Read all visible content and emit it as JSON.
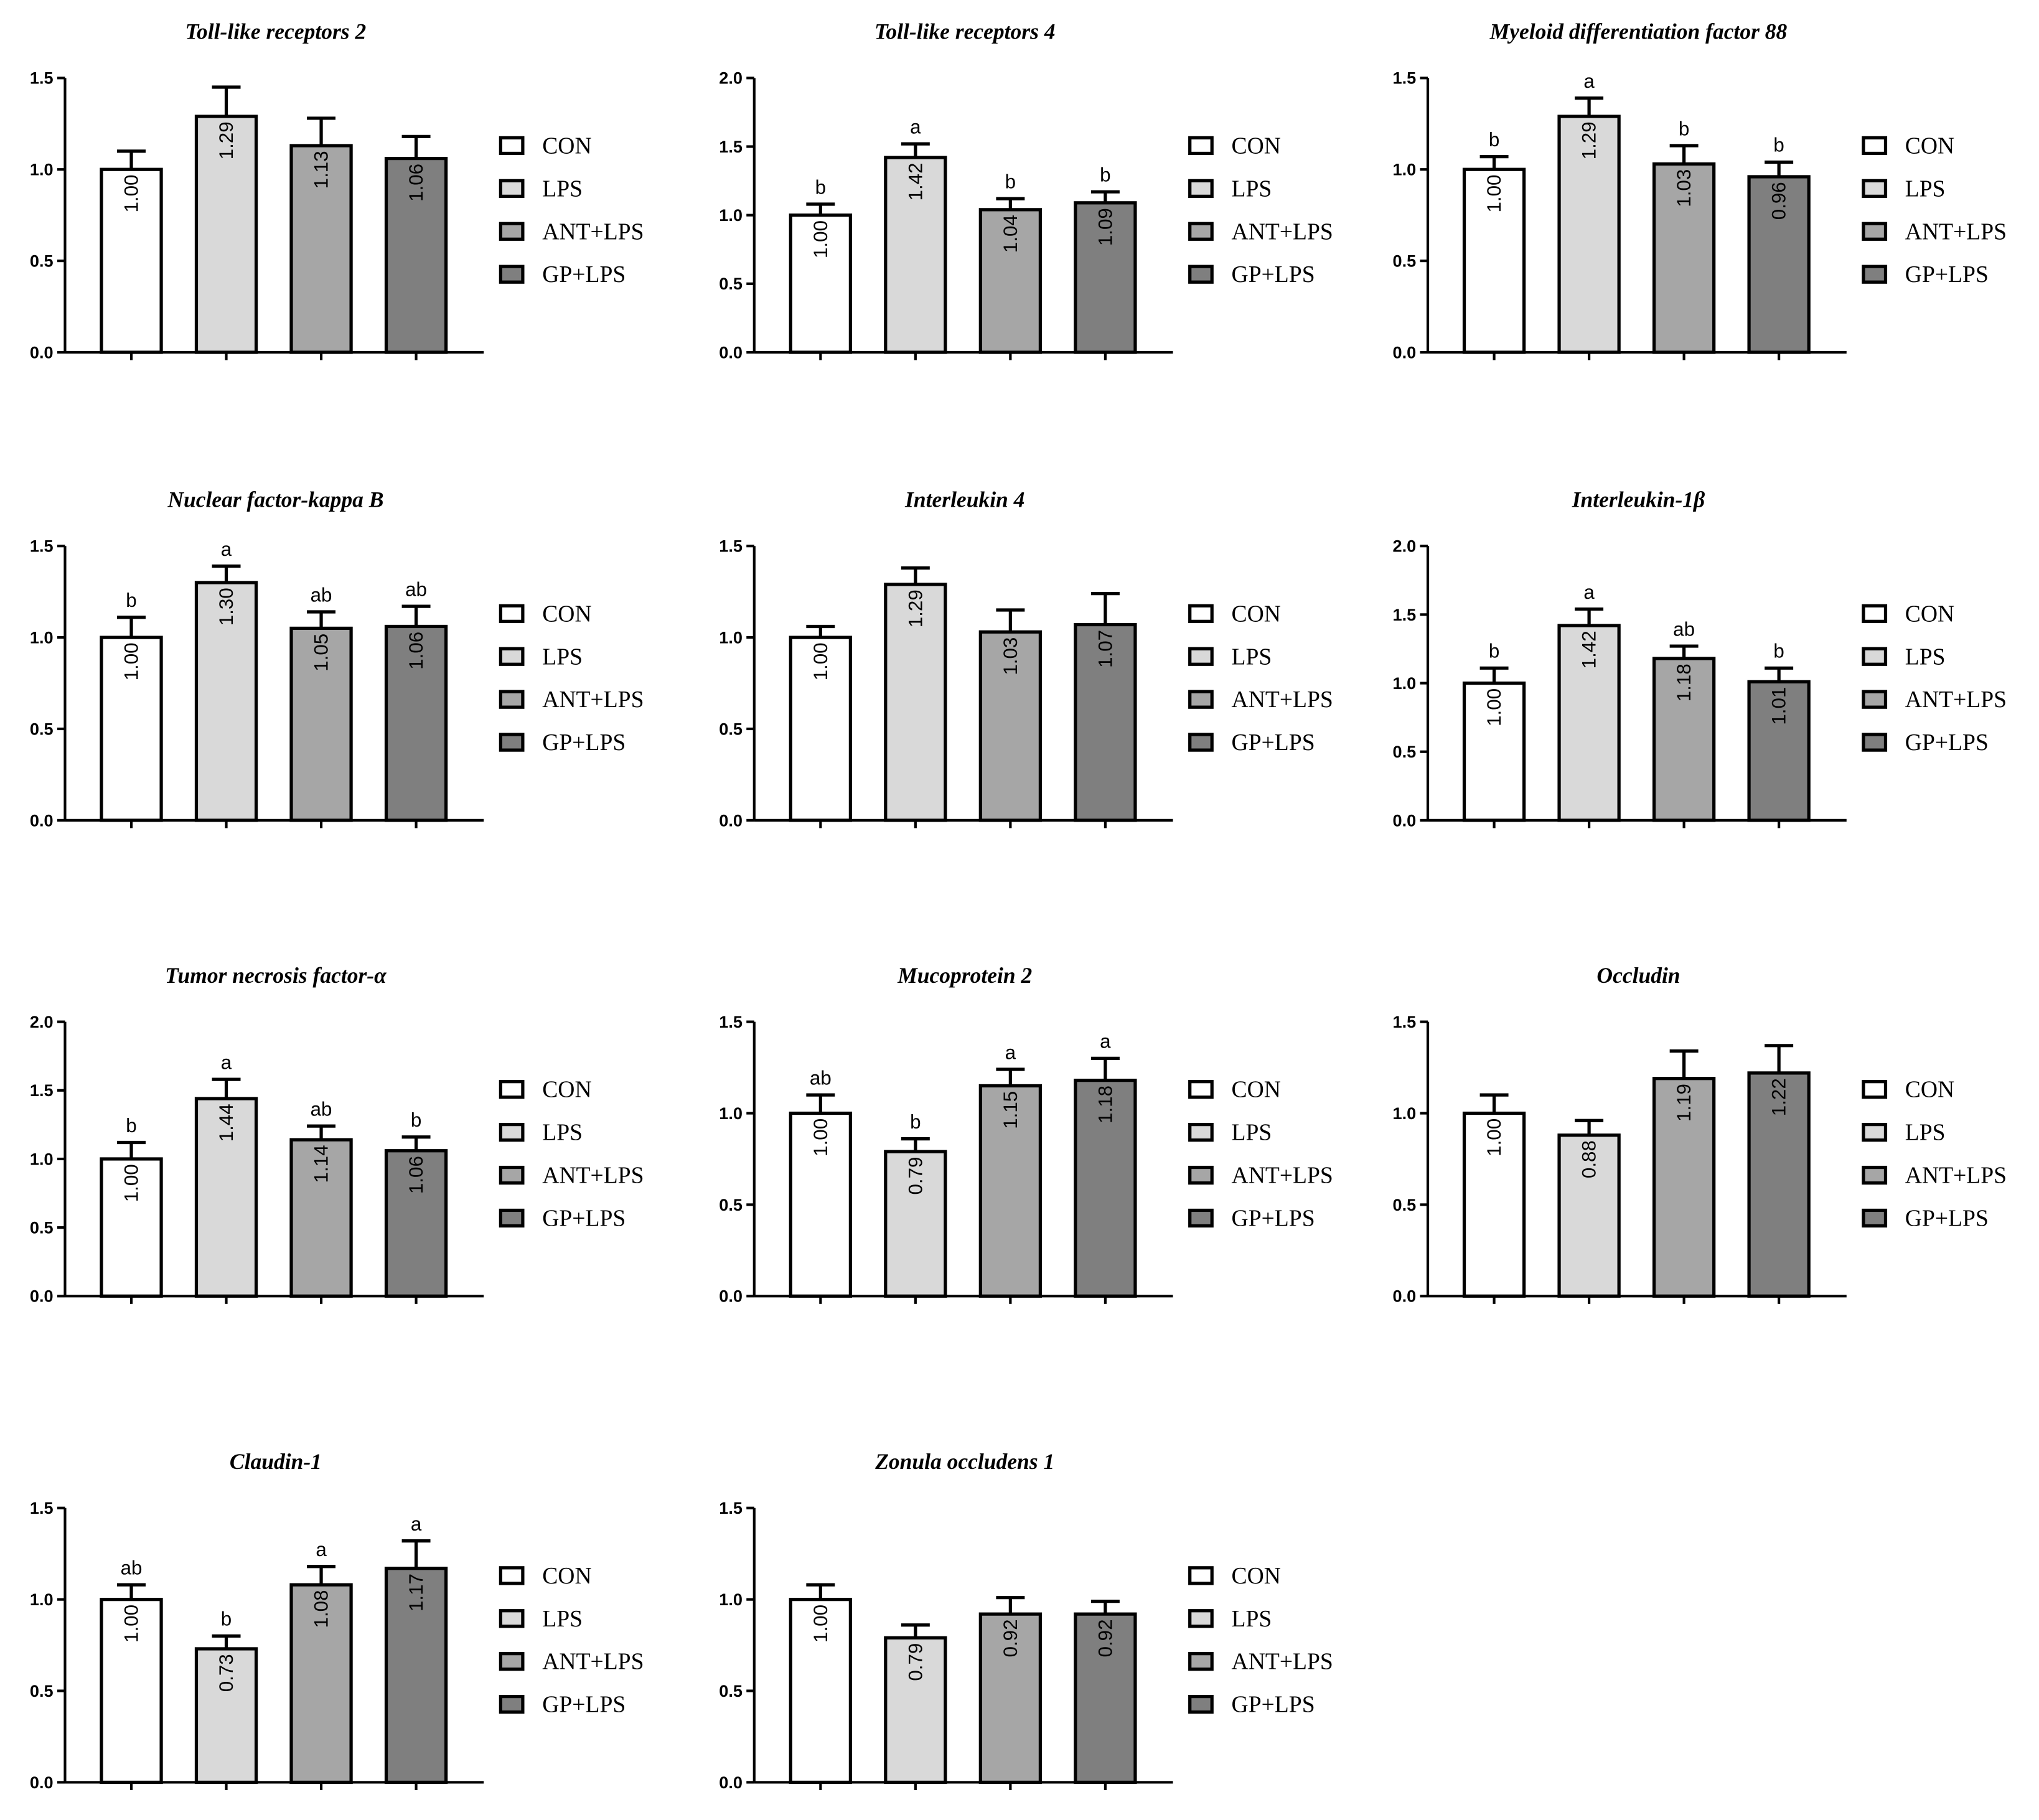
{
  "chart_data": [
    {
      "type": "bar",
      "title": "Toll-like receptors 2",
      "categories": [
        "CON",
        "LPS",
        "ANT+LPS",
        "GP+LPS"
      ],
      "colors": [
        "#ffffff",
        "#d9d9d9",
        "#a6a6a6",
        "#7f7f7f"
      ],
      "values": [
        1.0,
        1.29,
        1.13,
        1.06
      ],
      "value_labels": [
        "1.00",
        "1.29",
        "1.13",
        "1.06"
      ],
      "errors": [
        0.1,
        0.16,
        0.15,
        0.12
      ],
      "ylim": [
        0,
        1.5
      ],
      "yticks": [
        {
          "value": 0,
          "label": "0.0"
        },
        0.5,
        {
          "value": 1,
          "label": "1.0"
        },
        1.5
      ]
    },
    {
      "type": "bar",
      "title": "Toll-like receptors 4",
      "categories": [
        "CON",
        "LPS",
        "ANT+LPS",
        "GP+LPS"
      ],
      "colors": [
        "#ffffff",
        "#d9d9d9",
        "#a6a6a6",
        "#7f7f7f"
      ],
      "values": [
        1.0,
        1.42,
        1.04,
        1.09
      ],
      "value_labels": [
        "1.00",
        "1.42",
        "1.04",
        "1.09"
      ],
      "errors": [
        0.08,
        0.1,
        0.08,
        0.08
      ],
      "letters": [
        "b",
        "a",
        "b",
        "b"
      ],
      "ylim": [
        0,
        2
      ],
      "yticks": [
        {
          "value": 0,
          "label": "0.0"
        },
        0.5,
        {
          "value": 1,
          "label": "1.0"
        },
        1.5,
        {
          "value": 2,
          "label": "2.0"
        }
      ]
    },
    {
      "type": "bar",
      "title": "Myeloid differentiation factor 88",
      "categories": [
        "CON",
        "LPS",
        "ANT+LPS",
        "GP+LPS"
      ],
      "colors": [
        "#ffffff",
        "#d9d9d9",
        "#a6a6a6",
        "#7f7f7f"
      ],
      "values": [
        1.0,
        1.29,
        1.03,
        0.96
      ],
      "value_labels": [
        "1.00",
        "1.29",
        "1.03",
        "0.96"
      ],
      "errors": [
        0.07,
        0.1,
        0.1,
        0.08
      ],
      "letters": [
        "b",
        "a",
        "b",
        "b"
      ],
      "ylim": [
        0,
        1.5
      ],
      "yticks": [
        {
          "value": 0,
          "label": "0.0"
        },
        0.5,
        {
          "value": 1,
          "label": "1.0"
        },
        1.5
      ]
    },
    {
      "type": "bar",
      "title": "Nuclear factor-kappa B",
      "categories": [
        "CON",
        "LPS",
        "ANT+LPS",
        "GP+LPS"
      ],
      "colors": [
        "#ffffff",
        "#d9d9d9",
        "#a6a6a6",
        "#7f7f7f"
      ],
      "values": [
        1.0,
        1.3,
        1.05,
        1.06
      ],
      "value_labels": [
        "1.00",
        "1.30",
        "1.05",
        "1.06"
      ],
      "errors": [
        0.11,
        0.09,
        0.09,
        0.11
      ],
      "letters": [
        "b",
        "a",
        "ab",
        "ab"
      ],
      "ylim": [
        0,
        1.5
      ],
      "yticks": [
        {
          "value": 0,
          "label": "0.0"
        },
        0.5,
        {
          "value": 1,
          "label": "1.0"
        },
        1.5
      ]
    },
    {
      "type": "bar",
      "title": "Interleukin 4",
      "categories": [
        "CON",
        "LPS",
        "ANT+LPS",
        "GP+LPS"
      ],
      "colors": [
        "#ffffff",
        "#d9d9d9",
        "#a6a6a6",
        "#7f7f7f"
      ],
      "values": [
        1.0,
        1.29,
        1.03,
        1.07
      ],
      "value_labels": [
        "1.00",
        "1.29",
        "1.03",
        "1.07"
      ],
      "errors": [
        0.06,
        0.09,
        0.12,
        0.17
      ],
      "ylim": [
        0,
        1.5
      ],
      "yticks": [
        {
          "value": 0,
          "label": "0.0"
        },
        0.5,
        {
          "value": 1,
          "label": "1.0"
        },
        1.5
      ]
    },
    {
      "type": "bar",
      "title": "Interleukin-1β",
      "categories": [
        "CON",
        "LPS",
        "ANT+LPS",
        "GP+LPS"
      ],
      "colors": [
        "#ffffff",
        "#d9d9d9",
        "#a6a6a6",
        "#7f7f7f"
      ],
      "values": [
        1.0,
        1.42,
        1.18,
        1.01
      ],
      "value_labels": [
        "1.00",
        "1.42",
        "1.18",
        "1.01"
      ],
      "errors": [
        0.11,
        0.12,
        0.09,
        0.1
      ],
      "letters": [
        "b",
        "a",
        "ab",
        "b"
      ],
      "ylim": [
        0,
        2
      ],
      "yticks": [
        {
          "value": 0,
          "label": "0.0"
        },
        0.5,
        {
          "value": 1,
          "label": "1.0"
        },
        1.5,
        {
          "value": 2,
          "label": "2.0"
        }
      ]
    },
    {
      "type": "bar",
      "title": "Tumor necrosis factor-α",
      "categories": [
        "CON",
        "LPS",
        "ANT+LPS",
        "GP+LPS"
      ],
      "colors": [
        "#ffffff",
        "#d9d9d9",
        "#a6a6a6",
        "#7f7f7f"
      ],
      "values": [
        1.0,
        1.44,
        1.14,
        1.06
      ],
      "value_labels": [
        "1.00",
        "1.44",
        "1.14",
        "1.06"
      ],
      "errors": [
        0.12,
        0.14,
        0.1,
        0.1
      ],
      "letters": [
        "b",
        "a",
        "ab",
        "b"
      ],
      "ylim": [
        0,
        2
      ],
      "yticks": [
        {
          "value": 0,
          "label": "0.0"
        },
        0.5,
        {
          "value": 1,
          "label": "1.0"
        },
        1.5,
        {
          "value": 2,
          "label": "2.0"
        }
      ]
    },
    {
      "type": "bar",
      "title": "Mucoprotein 2",
      "categories": [
        "CON",
        "LPS",
        "ANT+LPS",
        "GP+LPS"
      ],
      "colors": [
        "#ffffff",
        "#d9d9d9",
        "#a6a6a6",
        "#7f7f7f"
      ],
      "values": [
        1.0,
        0.79,
        1.15,
        1.18
      ],
      "value_labels": [
        "1.00",
        "0.79",
        "1.15",
        "1.18"
      ],
      "errors": [
        0.1,
        0.07,
        0.09,
        0.12
      ],
      "letters": [
        "ab",
        "b",
        "a",
        "a"
      ],
      "ylim": [
        0,
        1.5
      ],
      "yticks": [
        {
          "value": 0,
          "label": "0.0"
        },
        0.5,
        {
          "value": 1,
          "label": "1.0"
        },
        1.5
      ]
    },
    {
      "type": "bar",
      "title": "Occludin",
      "categories": [
        "CON",
        "LPS",
        "ANT+LPS",
        "GP+LPS"
      ],
      "colors": [
        "#ffffff",
        "#d9d9d9",
        "#a6a6a6",
        "#7f7f7f"
      ],
      "values": [
        1.0,
        0.88,
        1.19,
        1.22
      ],
      "value_labels": [
        "1.00",
        "0.88",
        "1.19",
        "1.22"
      ],
      "errors": [
        0.1,
        0.08,
        0.15,
        0.15
      ],
      "ylim": [
        0,
        1.5
      ],
      "yticks": [
        {
          "value": 0,
          "label": "0.0"
        },
        0.5,
        {
          "value": 1,
          "label": "1.0"
        },
        1.5
      ]
    },
    {
      "type": "bar",
      "title": "Claudin-1",
      "categories": [
        "CON",
        "LPS",
        "ANT+LPS",
        "GP+LPS"
      ],
      "colors": [
        "#ffffff",
        "#d9d9d9",
        "#a6a6a6",
        "#7f7f7f"
      ],
      "values": [
        1.0,
        0.73,
        1.08,
        1.17
      ],
      "value_labels": [
        "1.00",
        "0.73",
        "1.08",
        "1.17"
      ],
      "errors": [
        0.08,
        0.07,
        0.1,
        0.15
      ],
      "letters": [
        "ab",
        "b",
        "a",
        "a"
      ],
      "ylim": [
        0,
        1.5
      ],
      "yticks": [
        {
          "value": 0,
          "label": "0.0"
        },
        0.5,
        {
          "value": 1,
          "label": "1.0"
        },
        1.5
      ]
    },
    {
      "type": "bar",
      "title": "Zonula occludens 1",
      "categories": [
        "CON",
        "LPS",
        "ANT+LPS",
        "GP+LPS"
      ],
      "colors": [
        "#ffffff",
        "#d9d9d9",
        "#a6a6a6",
        "#7f7f7f"
      ],
      "values": [
        1.0,
        0.79,
        0.92,
        0.92
      ],
      "value_labels": [
        "1.00",
        "0.79",
        "0.92",
        "0.92"
      ],
      "errors": [
        0.08,
        0.07,
        0.09,
        0.07
      ],
      "ylim": [
        0,
        1.5
      ],
      "yticks": [
        {
          "value": 0,
          "label": "0.0"
        },
        0.5,
        {
          "value": 1,
          "label": "1.0"
        },
        1.5
      ]
    }
  ]
}
